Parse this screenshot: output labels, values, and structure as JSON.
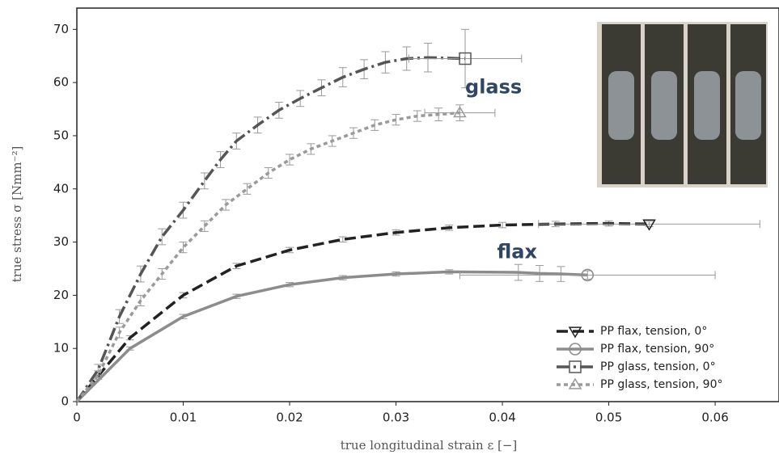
{
  "chart_data": {
    "type": "line",
    "xlabel": "true longitudinal strain ε [−]",
    "ylabel": "true stress σ [Nmm⁻²]",
    "xlim": [
      0,
      0.066
    ],
    "ylim": [
      0,
      74
    ],
    "xticks": [
      0,
      0.01,
      0.02,
      0.03,
      0.04,
      0.05,
      0.06
    ],
    "yticks": [
      0,
      10,
      20,
      30,
      40,
      50,
      60,
      70
    ],
    "legend": "lower right",
    "annotations": [
      {
        "text": "glass",
        "x": 0.0365,
        "y": 59
      },
      {
        "text": "flax",
        "x": 0.0395,
        "y": 28
      }
    ],
    "series": [
      {
        "name": "PP flax, tension, 0°",
        "color": "#222222",
        "dash": "14,6",
        "marker": "triangle-down",
        "x": [
          0,
          0.005,
          0.01,
          0.015,
          0.02,
          0.025,
          0.03,
          0.035,
          0.04,
          0.045,
          0.05,
          0.0538
        ],
        "values": [
          0,
          12,
          20,
          25.5,
          28.5,
          30.5,
          31.8,
          32.7,
          33.2,
          33.4,
          33.5,
          33.4
        ],
        "yerr": [
          0,
          0.4,
          0.5,
          0.5,
          0.5,
          0.5,
          0.5,
          0.5,
          0.5,
          0.5,
          0.5,
          0.5
        ],
        "end_xerr": 0.0104
      },
      {
        "name": "PP flax, tension, 90°",
        "color": "#8c8c8c",
        "dash": "",
        "marker": "circle",
        "x": [
          0,
          0.005,
          0.01,
          0.015,
          0.02,
          0.025,
          0.03,
          0.035,
          0.0415,
          0.0435,
          0.0455,
          0.048
        ],
        "values": [
          0,
          10,
          16,
          19.8,
          22,
          23.3,
          24,
          24.4,
          24.3,
          24.1,
          24,
          23.8
        ],
        "yerr": [
          0,
          0.3,
          0.4,
          0.4,
          0.4,
          0.4,
          0.4,
          0.4,
          1.5,
          1.5,
          1.4,
          0.8
        ],
        "end_xerr": 0.012
      },
      {
        "name": "PP glass, tension, 0°",
        "color": "#555555",
        "dash": "16,5,3,5",
        "marker": "square",
        "x": [
          0,
          0.002,
          0.004,
          0.006,
          0.008,
          0.01,
          0.012,
          0.0135,
          0.015,
          0.017,
          0.019,
          0.021,
          0.023,
          0.025,
          0.027,
          0.029,
          0.031,
          0.033,
          0.0365
        ],
        "values": [
          0,
          6,
          16,
          24,
          31,
          36,
          41.5,
          45.5,
          49,
          52,
          54.8,
          57,
          59,
          61,
          62.5,
          63.8,
          64.5,
          64.7,
          64.5
        ],
        "yerr": [
          0,
          1,
          1.3,
          1.5,
          1.5,
          1.5,
          1.5,
          1.5,
          1.5,
          1.5,
          1.5,
          1.5,
          1.5,
          1.8,
          1.8,
          2,
          2.2,
          2.7,
          5.5
        ],
        "end_xerr": 0.0053
      },
      {
        "name": "PP glass, tension, 90°",
        "color": "#9a9a9a",
        "dash": "5,4",
        "marker": "triangle-up",
        "x": [
          0,
          0.002,
          0.004,
          0.006,
          0.008,
          0.01,
          0.012,
          0.014,
          0.016,
          0.018,
          0.02,
          0.022,
          0.024,
          0.026,
          0.028,
          0.03,
          0.032,
          0.034,
          0.036
        ],
        "values": [
          0,
          5,
          13,
          19,
          24,
          29,
          33,
          37,
          40,
          43,
          45.5,
          47.5,
          49,
          50.5,
          52,
          53,
          53.7,
          54,
          54.3
        ],
        "yerr": [
          0,
          0.8,
          1,
          1,
          1,
          1,
          1,
          1,
          1,
          1,
          1,
          1,
          1,
          1,
          1,
          1,
          1,
          1.2,
          1.5
        ],
        "end_xerr": 0.0033
      }
    ]
  }
}
